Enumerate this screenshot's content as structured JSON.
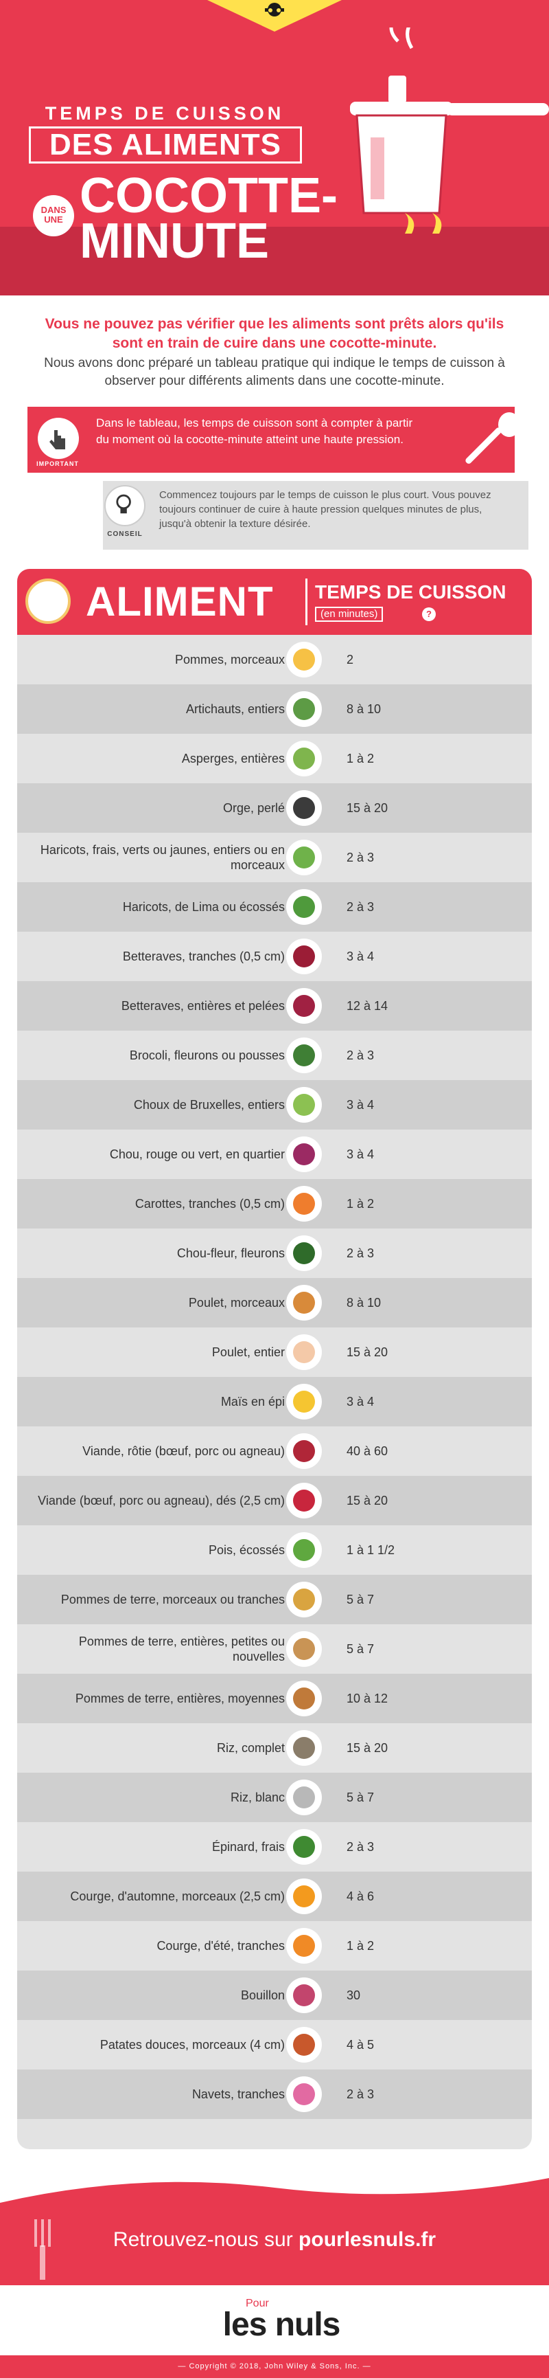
{
  "header": {
    "line1": "TEMPS DE CUISSON",
    "line2": "DES ALIMENTS",
    "dans_une": "DANS UNE",
    "line3a": "COCOTTE-",
    "line3b": "MINUTE"
  },
  "intro": {
    "lead": "Vous ne pouvez pas vérifier que les aliments sont prêts alors qu'ils sont en train de cuire dans une cocotte-minute.",
    "sub": "Nous avons donc préparé un tableau pratique qui indique le temps de cuisson à observer pour différents aliments dans une cocotte-minute."
  },
  "important": {
    "label": "IMPORTANT",
    "text": "Dans le tableau, les temps de cuisson sont à compter à partir du moment où la cocotte-minute atteint une haute pression."
  },
  "conseil": {
    "label": "CONSEIL",
    "text": "Commencez toujours par le temps de cuisson le plus court. Vous pouvez toujours continuer de cuire à haute pression quelques minutes de plus, jusqu'à obtenir la texture désirée."
  },
  "table": {
    "col1": "ALIMENT",
    "col2": "TEMPS DE CUISSON",
    "col2_unit": "(en minutes)",
    "info": "?",
    "rows": [
      {
        "name": "Pommes, morceaux",
        "time": "2",
        "color": "#f6c145"
      },
      {
        "name": "Artichauts, entiers",
        "time": "8 à 10",
        "color": "#5d9b45"
      },
      {
        "name": "Asperges, entières",
        "time": "1 à 2",
        "color": "#7fb54d"
      },
      {
        "name": "Orge, perlé",
        "time": "15 à 20",
        "color": "#3b3b3b"
      },
      {
        "name": "Haricots, frais, verts ou jaunes, entiers ou en morceaux",
        "time": "2 à 3",
        "color": "#6fb24a"
      },
      {
        "name": "Haricots, de Lima ou écossés",
        "time": "2 à 3",
        "color": "#4f9a3c"
      },
      {
        "name": "Betteraves, tranches (0,5 cm)",
        "time": "3 à 4",
        "color": "#9b1d36"
      },
      {
        "name": "Betteraves, entières et pelées",
        "time": "12 à 14",
        "color": "#a02142"
      },
      {
        "name": "Brocoli, fleurons ou pousses",
        "time": "2 à 3",
        "color": "#3f7f35"
      },
      {
        "name": "Choux de Bruxelles, entiers",
        "time": "3 à 4",
        "color": "#8cc152"
      },
      {
        "name": "Chou, rouge ou vert, en quartier",
        "time": "3 à 4",
        "color": "#9b2a63"
      },
      {
        "name": "Carottes, tranches (0,5 cm)",
        "time": "1 à 2",
        "color": "#ef7d2d"
      },
      {
        "name": "Chou-fleur, fleurons",
        "time": "2 à 3",
        "color": "#2f6b2a"
      },
      {
        "name": "Poulet, morceaux",
        "time": "8 à 10",
        "color": "#d88a3a"
      },
      {
        "name": "Poulet, entier",
        "time": "15 à 20",
        "color": "#f4c9a8"
      },
      {
        "name": "Maïs en épi",
        "time": "3 à 4",
        "color": "#f5c531"
      },
      {
        "name": "Viande, rôtie (bœuf, porc ou agneau)",
        "time": "40 à 60",
        "color": "#b02638"
      },
      {
        "name": "Viande (bœuf, porc ou agneau), dés (2,5 cm)",
        "time": "15 à 20",
        "color": "#c8263d"
      },
      {
        "name": "Pois, écossés",
        "time": "1 à 1 1/2",
        "color": "#5fa83f"
      },
      {
        "name": "Pommes de terre, morceaux ou tranches",
        "time": "5 à 7",
        "color": "#d9a440"
      },
      {
        "name": "Pommes de terre, entières, petites ou nouvelles",
        "time": "5 à 7",
        "color": "#c99455"
      },
      {
        "name": "Pommes de terre, entières, moyennes",
        "time": "10 à 12",
        "color": "#c07a3a"
      },
      {
        "name": "Riz, complet",
        "time": "15 à 20",
        "color": "#8a7d6a"
      },
      {
        "name": "Riz, blanc",
        "time": "5 à 7",
        "color": "#b8b8b8"
      },
      {
        "name": "Épinard, frais",
        "time": "2 à 3",
        "color": "#3f8a32"
      },
      {
        "name": "Courge, d'automne, morceaux (2,5 cm)",
        "time": "4 à 6",
        "color": "#f39a1e"
      },
      {
        "name": "Courge, d'été, tranches",
        "time": "1 à 2",
        "color": "#f08a26"
      },
      {
        "name": "Bouillon",
        "time": "30",
        "color": "#c2456d"
      },
      {
        "name": "Patates douces, morceaux (4 cm)",
        "time": "4 à 5",
        "color": "#c8582c"
      },
      {
        "name": "Navets, tranches",
        "time": "2 à 3",
        "color": "#e26aa2"
      }
    ]
  },
  "footer": {
    "prefix": "Retrouvez-nous sur ",
    "site": "pourlesnuls.fr",
    "logo_pour": "Pour",
    "logo_nuls": "les nuls",
    "copyright": "— Copyright © 2018, John Wiley & Sons, Inc. —"
  }
}
